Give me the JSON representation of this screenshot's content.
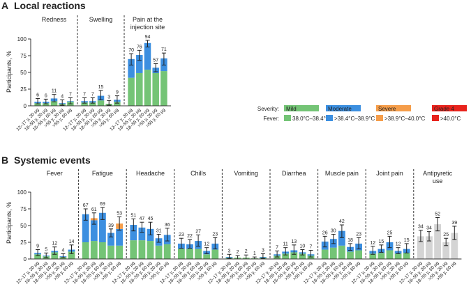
{
  "figure": {
    "legend": {
      "severity_label": "Severity:",
      "fever_label": "Fever:",
      "entries": [
        {
          "severity": "Mild",
          "fever": "38.0°C–38.4°C",
          "color": "#74c476"
        },
        {
          "severity": "Moderate",
          "fever": ">38.4°C–38.9°C",
          "color": "#3c8fe0"
        },
        {
          "severity": "Severe",
          "fever": ">38.9°C–40.0°C",
          "color": "#f59d4a"
        },
        {
          "severity": "Grade 4",
          "fever": ">40.0°C",
          "color": "#e8231c"
        }
      ]
    }
  },
  "chart_data": [
    {
      "type": "bar",
      "panel_letter": "A",
      "title": "Local reactions",
      "ylabel": "Participants, %",
      "ylim": [
        0,
        100
      ],
      "yticks": [
        0,
        25,
        50,
        75,
        100
      ],
      "grid": false,
      "stacked": true,
      "categories": [
        "12–17 y, 30 μg",
        "18–55 y, 30 μg",
        "18–55 y, 60 μg",
        ">55 y, 30 μg",
        ">55 y, 60 μg"
      ],
      "groups": [
        {
          "name": "Redness",
          "totals": [
            6,
            6,
            11,
            4,
            7
          ],
          "series": {
            "Mild": [
              4,
              4,
              7,
              3,
              6
            ],
            "Moderate": [
              2,
              2,
              4,
              1,
              1
            ]
          },
          "ci": [
            [
              3,
              11
            ],
            [
              3,
              10
            ],
            [
              6,
              17
            ],
            [
              1,
              9
            ],
            [
              3,
              12
            ]
          ]
        },
        {
          "name": "Swelling",
          "totals": [
            7,
            7,
            15,
            3,
            9
          ],
          "series": {
            "Mild": [
              5,
              5,
              8,
              3,
              6
            ],
            "Moderate": [
              2,
              2,
              7,
              0,
              3
            ]
          },
          "ci": [
            [
              4,
              12
            ],
            [
              4,
              12
            ],
            [
              9,
              23
            ],
            [
              1,
              8
            ],
            [
              4,
              15
            ]
          ]
        },
        {
          "name": "Pain at the\ninjection site",
          "totals": [
            70,
            76,
            94,
            57,
            71
          ],
          "series": {
            "Mild": [
              42,
              49,
              54,
              49,
              52
            ],
            "Moderate": [
              28,
              27,
              40,
              8,
              19
            ]
          },
          "ci": [
            [
              61,
              78
            ],
            [
              68,
              83
            ],
            [
              88,
              98
            ],
            [
              51,
              63
            ],
            [
              61,
              79
            ]
          ]
        }
      ]
    },
    {
      "type": "bar",
      "panel_letter": "B",
      "title": "Systemic events",
      "ylabel": "Participants, %",
      "ylim": [
        0,
        100
      ],
      "yticks": [
        0,
        25,
        50,
        75,
        100
      ],
      "grid": false,
      "stacked": true,
      "categories": [
        "12–17 y, 30 μg",
        "18–55 y, 30 μg",
        "18–55 y, 60 μg",
        ">55 y, 30 μg",
        ">55 y, 60 μg"
      ],
      "groups": [
        {
          "name": "Fever",
          "totals": [
            9,
            5,
            12,
            4,
            14
          ],
          "series": {
            "Mild": [
              7,
              4,
              10,
              3,
              11
            ],
            "Moderate": [
              2,
              1,
              2,
              1,
              3
            ]
          },
          "ci": [
            [
              5,
              14
            ],
            [
              2,
              9
            ],
            [
              7,
              18
            ],
            [
              2,
              8
            ],
            [
              8,
              21
            ]
          ]
        },
        {
          "name": "Fatigue",
          "totals": [
            67,
            61,
            69,
            39,
            53
          ],
          "series": {
            "Mild": [
              25,
              27,
              25,
              20,
              20
            ],
            "Moderate": [
              42,
              31,
              44,
              19,
              25
            ],
            "Severe": [
              0,
              3,
              0,
              0,
              8
            ]
          },
          "ci": [
            [
              58,
              75
            ],
            [
              52,
              69
            ],
            [
              59,
              77
            ],
            [
              33,
              45
            ],
            [
              43,
              63
            ]
          ]
        },
        {
          "name": "Headache",
          "totals": [
            51,
            47,
            45,
            31,
            36
          ],
          "series": {
            "Mild": [
              28,
              28,
              27,
              20,
              22
            ],
            "Moderate": [
              23,
              19,
              18,
              11,
              14
            ]
          },
          "ci": [
            [
              42,
              60
            ],
            [
              40,
              55
            ],
            [
              36,
              55
            ],
            [
              25,
              37
            ],
            [
              27,
              46
            ]
          ]
        },
        {
          "name": "Chills",
          "totals": [
            23,
            22,
            27,
            12,
            23
          ],
          "series": {
            "Mild": [
              15,
              15,
              15,
              7,
              14
            ],
            "Moderate": [
              8,
              7,
              12,
              5,
              9
            ]
          },
          "ci": [
            [
              16,
              31
            ],
            [
              16,
              29
            ],
            [
              19,
              36
            ],
            [
              8,
              17
            ],
            [
              15,
              32
            ]
          ]
        },
        {
          "name": "Vomiting",
          "totals": [
            3,
            2,
            2,
            1,
            3
          ],
          "series": {
            "Mild": [
              2,
              2,
              2,
              1,
              2
            ],
            "Moderate": [
              1,
              0,
              0,
              0,
              1
            ]
          },
          "ci": [
            [
              1,
              7
            ],
            [
              0,
              5
            ],
            [
              0,
              6
            ],
            [
              0,
              3
            ],
            [
              1,
              8
            ]
          ]
        },
        {
          "name": "Diarrhea",
          "totals": [
            7,
            11,
            13,
            10,
            7
          ],
          "series": {
            "Mild": [
              5,
              8,
              10,
              8,
              5
            ],
            "Moderate": [
              2,
              3,
              3,
              2,
              2
            ]
          },
          "ci": [
            [
              3,
              12
            ],
            [
              6,
              17
            ],
            [
              7,
              21
            ],
            [
              6,
              14
            ],
            [
              3,
              13
            ]
          ]
        },
        {
          "name": "Muscle pain",
          "totals": [
            26,
            30,
            42,
            18,
            23
          ],
          "series": {
            "Mild": [
              14,
              17,
              20,
              11,
              13
            ],
            "Moderate": [
              12,
              13,
              22,
              7,
              10
            ]
          },
          "ci": [
            [
              18,
              34
            ],
            [
              23,
              37
            ],
            [
              32,
              51
            ],
            [
              13,
              23
            ],
            [
              15,
              32
            ]
          ]
        },
        {
          "name": "Joint pain",
          "totals": [
            12,
            15,
            25,
            12,
            15
          ],
          "series": {
            "Mild": [
              8,
              9,
              13,
              8,
              9
            ],
            "Moderate": [
              4,
              6,
              12,
              4,
              6
            ]
          },
          "ci": [
            [
              7,
              19
            ],
            [
              10,
              21
            ],
            [
              17,
              34
            ],
            [
              8,
              17
            ],
            [
              9,
              23
            ]
          ]
        },
        {
          "name": "Antipyretic\nuse",
          "totals": [
            34,
            34,
            52,
            25,
            39
          ],
          "series": {
            "Any": [
              34,
              34,
              52,
              25,
              39
            ]
          },
          "ci": [
            [
              26,
              43
            ],
            [
              27,
              41
            ],
            [
              42,
              62
            ],
            [
              20,
              31
            ],
            [
              29,
              49
            ]
          ]
        }
      ]
    }
  ]
}
